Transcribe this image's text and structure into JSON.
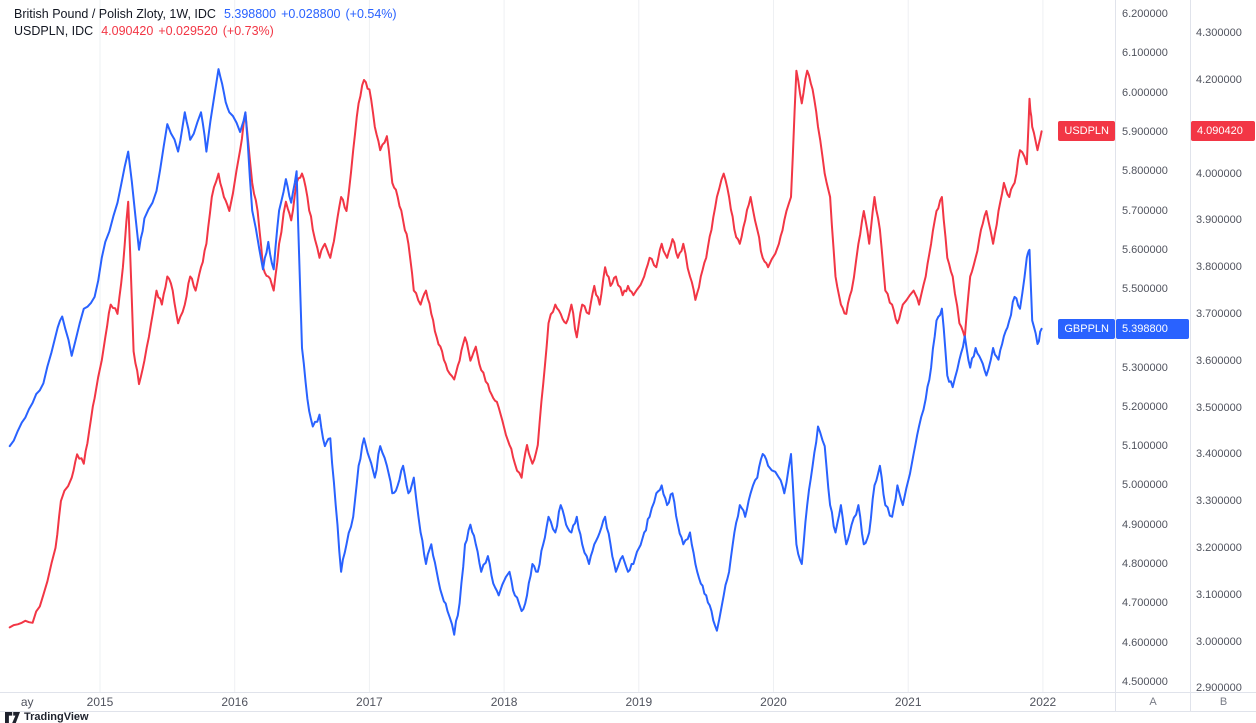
{
  "colors": {
    "blue": "#2962ff",
    "red": "#f23645",
    "grid": "#eef0f3",
    "border": "#e0e3eb",
    "axis_text": "#50535e"
  },
  "legend": {
    "row1": {
      "title": "British Pound / Polish Zloty, 1W, IDC",
      "price": "5.398800",
      "change": "+0.028800",
      "change_pct": "(+0.54%)"
    },
    "row2": {
      "title": "USDPLN, IDC",
      "price": "4.090420",
      "change": "+0.029520",
      "change_pct": "(+0.73%)"
    }
  },
  "price_labels": {
    "gbppln": {
      "name": "GBPPLN",
      "value": "5.398800"
    },
    "usdpln": {
      "name": "USDPLN",
      "value": "4.090420"
    }
  },
  "axes": {
    "scale_a": {
      "footer": "A",
      "ticks": [
        "6.200000",
        "6.100000",
        "6.000000",
        "5.900000",
        "5.800000",
        "5.700000",
        "5.600000",
        "5.500000",
        "5.400000",
        "5.300000",
        "5.200000",
        "5.100000",
        "5.000000",
        "4.900000",
        "4.800000",
        "4.700000",
        "4.600000",
        "4.500000"
      ]
    },
    "scale_b": {
      "footer": "B",
      "ticks": [
        "4.300000",
        "4.200000",
        "4.100000",
        "4.000000",
        "3.900000",
        "3.800000",
        "3.700000",
        "3.600000",
        "3.500000",
        "3.400000",
        "3.300000",
        "3.200000",
        "3.100000",
        "3.000000",
        "2.900000"
      ]
    },
    "time": {
      "ticks": [
        {
          "label": "ay",
          "t": 2014.46,
          "grid": false
        },
        {
          "label": "2015",
          "t": 2015,
          "grid": true
        },
        {
          "label": "2016",
          "t": 2016,
          "grid": true
        },
        {
          "label": "2017",
          "t": 2017,
          "grid": true
        },
        {
          "label": "2018",
          "t": 2018,
          "grid": true
        },
        {
          "label": "2019",
          "t": 2019,
          "grid": true
        },
        {
          "label": "2020",
          "t": 2020,
          "grid": true
        },
        {
          "label": "2021",
          "t": 2021,
          "grid": true
        },
        {
          "label": "2022",
          "t": 2022,
          "grid": true
        }
      ]
    }
  },
  "footer": {
    "logo_text": "TradingView"
  },
  "chart_data": {
    "type": "line",
    "x_unit": "decimal_year",
    "x_range": [
      2014.258,
      2022.535
    ],
    "scales": {
      "a": [
        4.474,
        6.236
      ],
      "b": [
        2.892,
        4.371
      ]
    },
    "series": [
      {
        "name": "USDPLN",
        "color": "#f23645",
        "scale": "b",
        "jitter": 0.012,
        "x": [
          2014.33,
          2014.42,
          2014.5,
          2014.58,
          2014.67,
          2014.71,
          2014.79,
          2014.83,
          2014.88,
          2014.92,
          2014.96,
          2015.04,
          2015.08,
          2015.13,
          2015.17,
          2015.21,
          2015.25,
          2015.29,
          2015.33,
          2015.38,
          2015.42,
          2015.46,
          2015.5,
          2015.54,
          2015.58,
          2015.63,
          2015.67,
          2015.71,
          2015.75,
          2015.79,
          2015.83,
          2015.88,
          2015.92,
          2015.96,
          2016.04,
          2016.08,
          2016.13,
          2016.17,
          2016.21,
          2016.25,
          2016.29,
          2016.33,
          2016.38,
          2016.42,
          2016.46,
          2016.5,
          2016.54,
          2016.58,
          2016.63,
          2016.67,
          2016.71,
          2016.75,
          2016.79,
          2016.83,
          2016.88,
          2016.92,
          2016.96,
          2017.0,
          2017.04,
          2017.08,
          2017.13,
          2017.17,
          2017.21,
          2017.25,
          2017.29,
          2017.33,
          2017.38,
          2017.42,
          2017.46,
          2017.5,
          2017.54,
          2017.58,
          2017.63,
          2017.67,
          2017.71,
          2017.75,
          2017.79,
          2017.83,
          2017.88,
          2017.92,
          2017.96,
          2018.04,
          2018.08,
          2018.13,
          2018.17,
          2018.21,
          2018.25,
          2018.29,
          2018.33,
          2018.38,
          2018.42,
          2018.46,
          2018.5,
          2018.54,
          2018.58,
          2018.63,
          2018.67,
          2018.71,
          2018.75,
          2018.79,
          2018.83,
          2018.88,
          2018.92,
          2018.96,
          2019.04,
          2019.08,
          2019.13,
          2019.17,
          2019.21,
          2019.25,
          2019.29,
          2019.33,
          2019.38,
          2019.42,
          2019.46,
          2019.5,
          2019.54,
          2019.58,
          2019.63,
          2019.67,
          2019.71,
          2019.75,
          2019.79,
          2019.83,
          2019.88,
          2019.92,
          2019.96,
          2020.04,
          2020.08,
          2020.13,
          2020.17,
          2020.21,
          2020.25,
          2020.29,
          2020.33,
          2020.38,
          2020.42,
          2020.46,
          2020.5,
          2020.54,
          2020.58,
          2020.63,
          2020.67,
          2020.71,
          2020.75,
          2020.79,
          2020.83,
          2020.88,
          2020.92,
          2020.96,
          2021.04,
          2021.08,
          2021.13,
          2021.17,
          2021.21,
          2021.25,
          2021.29,
          2021.33,
          2021.38,
          2021.42,
          2021.46,
          2021.5,
          2021.54,
          2021.58,
          2021.63,
          2021.67,
          2021.71,
          2021.75,
          2021.79,
          2021.83,
          2021.88,
          2021.9,
          2021.92,
          2021.96,
          2021.99
        ],
        "values": [
          3.03,
          3.04,
          3.04,
          3.1,
          3.2,
          3.3,
          3.35,
          3.4,
          3.38,
          3.45,
          3.52,
          3.65,
          3.72,
          3.7,
          3.8,
          3.94,
          3.62,
          3.55,
          3.6,
          3.68,
          3.75,
          3.72,
          3.78,
          3.75,
          3.68,
          3.72,
          3.78,
          3.75,
          3.8,
          3.85,
          3.95,
          4.0,
          3.95,
          3.92,
          4.05,
          4.13,
          3.98,
          3.92,
          3.8,
          3.78,
          3.75,
          3.85,
          3.94,
          3.9,
          3.98,
          4.0,
          3.95,
          3.88,
          3.82,
          3.85,
          3.82,
          3.88,
          3.95,
          3.92,
          4.05,
          4.15,
          4.2,
          4.18,
          4.1,
          4.05,
          4.08,
          3.98,
          3.95,
          3.9,
          3.85,
          3.75,
          3.72,
          3.75,
          3.7,
          3.65,
          3.62,
          3.58,
          3.56,
          3.6,
          3.65,
          3.6,
          3.63,
          3.58,
          3.55,
          3.52,
          3.5,
          3.42,
          3.38,
          3.35,
          3.42,
          3.38,
          3.42,
          3.55,
          3.68,
          3.72,
          3.7,
          3.68,
          3.72,
          3.65,
          3.72,
          3.7,
          3.76,
          3.72,
          3.8,
          3.76,
          3.78,
          3.74,
          3.76,
          3.74,
          3.78,
          3.82,
          3.8,
          3.85,
          3.82,
          3.86,
          3.82,
          3.85,
          3.78,
          3.73,
          3.78,
          3.82,
          3.88,
          3.95,
          4.0,
          3.95,
          3.88,
          3.85,
          3.9,
          3.95,
          3.88,
          3.82,
          3.8,
          3.85,
          3.9,
          3.95,
          4.22,
          4.15,
          4.22,
          4.18,
          4.1,
          4.0,
          3.95,
          3.78,
          3.72,
          3.7,
          3.75,
          3.85,
          3.92,
          3.85,
          3.95,
          3.88,
          3.75,
          3.72,
          3.68,
          3.72,
          3.75,
          3.72,
          3.78,
          3.85,
          3.92,
          3.95,
          3.82,
          3.78,
          3.68,
          3.65,
          3.78,
          3.82,
          3.88,
          3.92,
          3.85,
          3.92,
          3.98,
          3.95,
          3.98,
          4.05,
          4.02,
          4.16,
          4.1,
          4.05,
          4.0904
        ]
      },
      {
        "name": "GBPPLN",
        "color": "#2962ff",
        "scale": "a",
        "jitter": 0.016,
        "x": [
          2014.33,
          2014.42,
          2014.5,
          2014.58,
          2014.67,
          2014.72,
          2014.79,
          2014.88,
          2014.96,
          2015.04,
          2015.13,
          2015.21,
          2015.29,
          2015.33,
          2015.42,
          2015.5,
          2015.58,
          2015.63,
          2015.67,
          2015.75,
          2015.79,
          2015.88,
          2015.92,
          2015.96,
          2016.04,
          2016.08,
          2016.13,
          2016.21,
          2016.25,
          2016.29,
          2016.33,
          2016.38,
          2016.42,
          2016.46,
          2016.5,
          2016.54,
          2016.58,
          2016.63,
          2016.67,
          2016.71,
          2016.75,
          2016.79,
          2016.83,
          2016.88,
          2016.92,
          2016.96,
          2017.04,
          2017.08,
          2017.13,
          2017.17,
          2017.21,
          2017.25,
          2017.29,
          2017.33,
          2017.38,
          2017.42,
          2017.46,
          2017.5,
          2017.54,
          2017.58,
          2017.63,
          2017.67,
          2017.71,
          2017.75,
          2017.79,
          2017.83,
          2017.88,
          2017.92,
          2017.96,
          2018.04,
          2018.08,
          2018.13,
          2018.17,
          2018.21,
          2018.25,
          2018.29,
          2018.33,
          2018.38,
          2018.42,
          2018.46,
          2018.5,
          2018.54,
          2018.58,
          2018.63,
          2018.67,
          2018.71,
          2018.75,
          2018.79,
          2018.83,
          2018.88,
          2018.92,
          2018.96,
          2019.04,
          2019.08,
          2019.13,
          2019.17,
          2019.21,
          2019.25,
          2019.29,
          2019.33,
          2019.38,
          2019.42,
          2019.46,
          2019.5,
          2019.54,
          2019.58,
          2019.63,
          2019.67,
          2019.71,
          2019.75,
          2019.79,
          2019.83,
          2019.88,
          2019.92,
          2019.96,
          2020.04,
          2020.08,
          2020.13,
          2020.17,
          2020.21,
          2020.25,
          2020.29,
          2020.33,
          2020.38,
          2020.42,
          2020.46,
          2020.5,
          2020.54,
          2020.58,
          2020.63,
          2020.67,
          2020.71,
          2020.75,
          2020.79,
          2020.83,
          2020.88,
          2020.92,
          2020.96,
          2021.04,
          2021.08,
          2021.13,
          2021.17,
          2021.21,
          2021.25,
          2021.29,
          2021.33,
          2021.38,
          2021.42,
          2021.46,
          2021.5,
          2021.54,
          2021.58,
          2021.63,
          2021.67,
          2021.71,
          2021.75,
          2021.79,
          2021.83,
          2021.88,
          2021.9,
          2021.92,
          2021.96,
          2021.99
        ],
        "values": [
          5.1,
          5.16,
          5.21,
          5.26,
          5.38,
          5.43,
          5.33,
          5.45,
          5.48,
          5.62,
          5.72,
          5.85,
          5.6,
          5.68,
          5.75,
          5.92,
          5.85,
          5.95,
          5.88,
          5.95,
          5.85,
          6.06,
          6.0,
          5.95,
          5.9,
          5.95,
          5.7,
          5.55,
          5.62,
          5.55,
          5.7,
          5.78,
          5.72,
          5.8,
          5.35,
          5.22,
          5.15,
          5.18,
          5.1,
          5.12,
          4.95,
          4.78,
          4.85,
          4.92,
          5.05,
          5.12,
          5.02,
          5.1,
          5.05,
          4.98,
          5.0,
          5.05,
          4.98,
          5.02,
          4.88,
          4.8,
          4.85,
          4.78,
          4.72,
          4.68,
          4.62,
          4.7,
          4.85,
          4.9,
          4.85,
          4.78,
          4.82,
          4.75,
          4.72,
          4.78,
          4.72,
          4.68,
          4.72,
          4.8,
          4.78,
          4.85,
          4.92,
          4.88,
          4.95,
          4.9,
          4.88,
          4.92,
          4.85,
          4.8,
          4.85,
          4.88,
          4.92,
          4.85,
          4.78,
          4.82,
          4.78,
          4.8,
          4.88,
          4.92,
          4.98,
          5.0,
          4.95,
          4.98,
          4.9,
          4.85,
          4.88,
          4.8,
          4.75,
          4.72,
          4.68,
          4.63,
          4.72,
          4.78,
          4.88,
          4.95,
          4.92,
          4.98,
          5.02,
          5.08,
          5.05,
          5.02,
          4.98,
          5.08,
          4.85,
          4.8,
          4.95,
          5.05,
          5.15,
          5.1,
          4.95,
          4.88,
          4.95,
          4.85,
          4.9,
          4.95,
          4.85,
          4.88,
          5.0,
          5.05,
          4.95,
          4.92,
          5.0,
          4.95,
          5.08,
          5.15,
          5.22,
          5.3,
          5.42,
          5.45,
          5.28,
          5.25,
          5.32,
          5.38,
          5.3,
          5.35,
          5.32,
          5.28,
          5.35,
          5.32,
          5.38,
          5.42,
          5.48,
          5.45,
          5.58,
          5.6,
          5.42,
          5.36,
          5.3988
        ]
      }
    ]
  }
}
